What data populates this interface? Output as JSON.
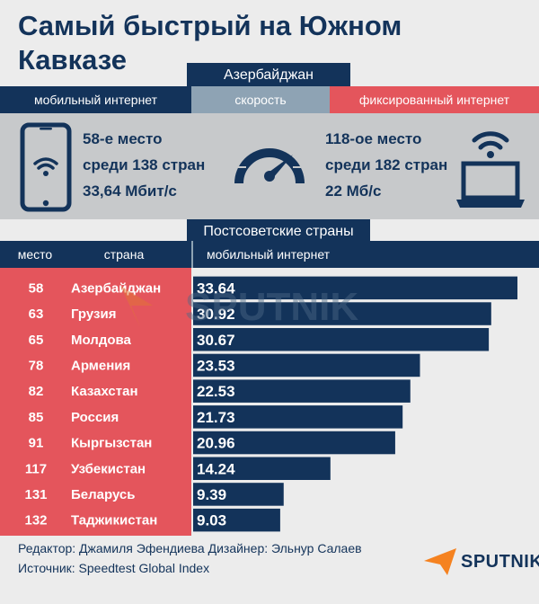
{
  "title": "Самый быстрый на Южном Кавказе",
  "country_tab": "Азербайджан",
  "tabs": {
    "mobile": "мобильный интернет",
    "speed": "скорость",
    "fixed": "фиксированный интернет"
  },
  "mobile_info": {
    "place": "58-е место",
    "of": "среди 138 стран",
    "speed": "33,64 Мбит/с"
  },
  "fixed_info": {
    "place": "118-ое место",
    "of": "среди 182 стран",
    "speed": "22 Мб/с"
  },
  "section_tab": "Постсоветские страны",
  "columns": {
    "place": "место",
    "country": "страна",
    "metric": "мобильный интернет"
  },
  "chart_data": {
    "type": "bar",
    "orientation": "horizontal",
    "categories": [
      "Азербайджан",
      "Грузия",
      "Молдова",
      "Армения",
      "Казахстан",
      "Россия",
      "Кыргызстан",
      "Узбекистан",
      "Беларусь",
      "Таджикистан"
    ],
    "ranks": [
      "58",
      "63",
      "65",
      "78",
      "82",
      "85",
      "91",
      "117",
      "131",
      "132"
    ],
    "values": [
      33.64,
      30.92,
      30.67,
      23.53,
      22.53,
      21.73,
      20.96,
      14.24,
      9.39,
      9.03
    ],
    "value_labels": [
      "33.64",
      "30.92",
      "30.67",
      "23.53",
      "22.53",
      "21.73",
      "20.96",
      "14.24",
      "9.39",
      "9.03"
    ],
    "xlabel": "мобильный интернет",
    "ylabel": "страна",
    "grid": false,
    "legend": "none"
  },
  "watermark_text": "SPUTNIK",
  "footer": {
    "editor": "Редактор: Джамиля Эфендиева",
    "designer": "Дизайнер: Эльнур Салаев",
    "source": "Источник: Speedtest Global Index"
  },
  "brand": "SPUTNIK",
  "colors": {
    "navy": "#13335a",
    "red": "#e4555c",
    "grey_blue": "#8ea3b4",
    "panel_grey": "#c7c9cb",
    "background": "#ececec"
  },
  "icons": [
    "smartphone-wifi-icon",
    "speedometer-icon",
    "laptop-wifi-icon",
    "sputnik-logo-icon"
  ]
}
